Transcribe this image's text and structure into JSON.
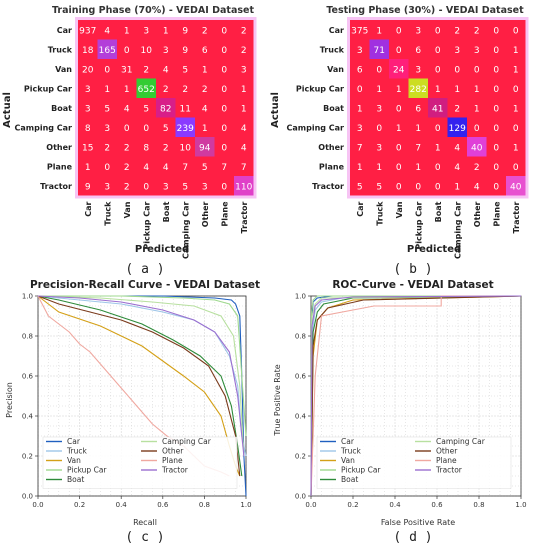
{
  "chart_data": [
    {
      "type": "heatmap",
      "title": "Training Phase (70%) - VEDAI Dataset",
      "xlabel": "Predicted",
      "ylabel": "Actual",
      "panel_label": "( a )",
      "categories": [
        "Car",
        "Truck",
        "Van",
        "Pickup Car",
        "Boat",
        "Camping Car",
        "Other",
        "Plane",
        "Tractor"
      ],
      "matrix": [
        [
          937,
          4,
          1,
          3,
          1,
          9,
          2,
          0,
          2
        ],
        [
          18,
          165,
          0,
          10,
          3,
          9,
          6,
          0,
          2
        ],
        [
          20,
          0,
          31,
          2,
          4,
          5,
          1,
          0,
          3
        ],
        [
          3,
          1,
          1,
          652,
          2,
          2,
          2,
          0,
          1
        ],
        [
          3,
          5,
          4,
          5,
          82,
          11,
          4,
          0,
          1
        ],
        [
          8,
          3,
          0,
          0,
          5,
          239,
          1,
          0,
          4
        ],
        [
          15,
          2,
          2,
          8,
          2,
          10,
          94,
          0,
          4
        ],
        [
          1,
          0,
          2,
          4,
          4,
          7,
          5,
          7,
          7
        ],
        [
          9,
          3,
          2,
          0,
          3,
          5,
          3,
          0,
          110
        ]
      ],
      "highlight_colors": {
        "0_0": "#ff1f44",
        "1_1": "#b33fd9",
        "3_3": "#33cc33",
        "4_4": "#d81e88",
        "5_5": "#8a3aff",
        "6_6": "#d03aa0",
        "8_8": "#e040c8"
      }
    },
    {
      "type": "heatmap",
      "title": "Testing Phase (30%) - VEDAI Dataset",
      "xlabel": "Predicted",
      "ylabel": "Actual",
      "panel_label": "( b )",
      "categories": [
        "Car",
        "Truck",
        "Van",
        "Pickup Car",
        "Boat",
        "Camping Car",
        "Other",
        "Plane",
        "Tractor"
      ],
      "matrix": [
        [
          375,
          1,
          0,
          3,
          0,
          2,
          2,
          0,
          0
        ],
        [
          3,
          71,
          0,
          6,
          0,
          3,
          3,
          0,
          1
        ],
        [
          6,
          0,
          24,
          3,
          0,
          0,
          0,
          0,
          1
        ],
        [
          0,
          1,
          1,
          282,
          1,
          1,
          1,
          0,
          0
        ],
        [
          1,
          3,
          0,
          6,
          41,
          2,
          1,
          0,
          1
        ],
        [
          3,
          0,
          1,
          1,
          0,
          129,
          0,
          0,
          0
        ],
        [
          7,
          3,
          0,
          7,
          1,
          4,
          40,
          0,
          1
        ],
        [
          1,
          1,
          0,
          1,
          0,
          4,
          2,
          0,
          0
        ],
        [
          5,
          5,
          0,
          0,
          0,
          1,
          4,
          0,
          40
        ]
      ],
      "highlight_colors": {
        "0_0": "#ff1f44",
        "1_1": "#a030e0",
        "2_2": "#ff1f7a",
        "3_3": "#ccdd22",
        "4_4": "#d01e80",
        "5_5": "#3322ee",
        "6_6": "#e040d8",
        "8_8": "#e850d0"
      }
    },
    {
      "type": "line",
      "title": "Precision-Recall Curve - VEDAI Dataset",
      "xlabel": "Recall",
      "ylabel": "Precision",
      "panel_label": "( c )",
      "xlim": [
        0,
        1.0
      ],
      "ylim": [
        0,
        1.0
      ],
      "xticks": [
        "0.0",
        "0.2",
        "0.4",
        "0.6",
        "0.8",
        "1.0"
      ],
      "yticks": [
        "0.0",
        "0.2",
        "0.4",
        "0.6",
        "0.8",
        "1.0"
      ],
      "legend": "lower-left",
      "grid": true,
      "series": [
        {
          "name": "Car",
          "color": "#1f5fbf",
          "x": [
            0,
            0.3,
            0.6,
            0.85,
            0.93,
            0.95,
            0.97,
            0.98,
            0.99,
            1.0
          ],
          "y": [
            1.0,
            1.0,
            1.0,
            0.99,
            0.98,
            0.96,
            0.9,
            0.6,
            0.2,
            0.0
          ]
        },
        {
          "name": "Truck",
          "color": "#9ec6e8",
          "x": [
            0,
            0.2,
            0.4,
            0.6,
            0.75,
            0.85,
            0.92,
            0.96,
            0.98,
            1.0
          ],
          "y": [
            1.0,
            0.98,
            0.96,
            0.92,
            0.88,
            0.82,
            0.7,
            0.55,
            0.3,
            0.2
          ]
        },
        {
          "name": "Van",
          "color": "#d4a017",
          "x": [
            0,
            0.1,
            0.3,
            0.5,
            0.7,
            0.8,
            0.88,
            0.92,
            0.95,
            0.97
          ],
          "y": [
            1.0,
            0.92,
            0.85,
            0.75,
            0.6,
            0.52,
            0.4,
            0.25,
            0.15,
            0.1
          ]
        },
        {
          "name": "Pickup Car",
          "color": "#9fd98f",
          "x": [
            0,
            0.4,
            0.7,
            0.85,
            0.92,
            0.96,
            0.98,
            1.0
          ],
          "y": [
            1.0,
            1.0,
            0.99,
            0.98,
            0.96,
            0.9,
            0.6,
            0.3
          ]
        },
        {
          "name": "Boat",
          "color": "#2e8b3a",
          "x": [
            0,
            0.1,
            0.3,
            0.5,
            0.65,
            0.78,
            0.88,
            0.93,
            0.96,
            0.98
          ],
          "y": [
            1.0,
            0.98,
            0.93,
            0.86,
            0.78,
            0.7,
            0.6,
            0.45,
            0.25,
            0.1
          ]
        },
        {
          "name": "Camping Car",
          "color": "#b8e0a0",
          "x": [
            0,
            0.3,
            0.55,
            0.75,
            0.88,
            0.94,
            0.97,
            0.99
          ],
          "y": [
            1.0,
            0.99,
            0.97,
            0.95,
            0.9,
            0.8,
            0.55,
            0.2
          ]
        },
        {
          "name": "Other",
          "color": "#7a3b1c",
          "x": [
            0,
            0.1,
            0.25,
            0.4,
            0.55,
            0.7,
            0.82,
            0.9,
            0.95,
            0.97
          ],
          "y": [
            1.0,
            0.96,
            0.92,
            0.88,
            0.82,
            0.74,
            0.65,
            0.5,
            0.3,
            0.1
          ]
        },
        {
          "name": "Plane",
          "color": "#f0a8a0",
          "x": [
            0,
            0.05,
            0.1,
            0.15,
            0.2,
            0.25,
            0.3,
            0.35,
            0.4,
            0.45,
            0.5,
            0.55,
            0.62,
            0.7,
            0.75,
            0.8,
            0.88,
            0.92
          ],
          "y": [
            1.0,
            0.9,
            0.86,
            0.82,
            0.76,
            0.72,
            0.66,
            0.6,
            0.54,
            0.48,
            0.42,
            0.36,
            0.3,
            0.25,
            0.2,
            0.15,
            0.12,
            0.1
          ]
        },
        {
          "name": "Tractor",
          "color": "#9b6fd0",
          "x": [
            0,
            0.2,
            0.4,
            0.6,
            0.75,
            0.85,
            0.92,
            0.96,
            0.99
          ],
          "y": [
            1.0,
            0.99,
            0.97,
            0.93,
            0.88,
            0.82,
            0.72,
            0.5,
            0.2
          ]
        }
      ]
    },
    {
      "type": "line",
      "title": "ROC-Curve - VEDAI Dataset",
      "xlabel": "False Positive Rate",
      "ylabel": "True Positive Rate",
      "panel_label": "( d )",
      "xlim": [
        0,
        1.0
      ],
      "ylim": [
        0,
        1.0
      ],
      "xticks": [
        "0.0",
        "0.2",
        "0.4",
        "0.6",
        "0.8",
        "1.0"
      ],
      "yticks": [
        "0.0",
        "0.2",
        "0.4",
        "0.6",
        "0.8",
        "1.0"
      ],
      "legend": "lower-right",
      "grid": true,
      "series": [
        {
          "name": "Car",
          "color": "#1f5fbf",
          "x": [
            0,
            0.005,
            0.01,
            0.03,
            0.1,
            1.0
          ],
          "y": [
            0,
            0.9,
            0.97,
            0.99,
            1.0,
            1.0
          ]
        },
        {
          "name": "Truck",
          "color": "#9ec6e8",
          "x": [
            0,
            0.005,
            0.02,
            0.05,
            0.15,
            1.0
          ],
          "y": [
            0,
            0.8,
            0.93,
            0.97,
            0.99,
            1.0
          ]
        },
        {
          "name": "Van",
          "color": "#d4a017",
          "x": [
            0,
            0.01,
            0.03,
            0.08,
            0.2,
            1.0
          ],
          "y": [
            0,
            0.7,
            0.88,
            0.94,
            0.98,
            1.0
          ]
        },
        {
          "name": "Pickup Car",
          "color": "#9fd98f",
          "x": [
            0,
            0.003,
            0.01,
            0.03,
            1.0
          ],
          "y": [
            0,
            0.92,
            0.98,
            1.0,
            1.0
          ]
        },
        {
          "name": "Boat",
          "color": "#2e8b3a",
          "x": [
            0,
            0.01,
            0.03,
            0.06,
            0.2,
            1.0
          ],
          "y": [
            0,
            0.82,
            0.92,
            0.96,
            0.99,
            1.0
          ]
        },
        {
          "name": "Camping Car",
          "color": "#b8e0a0",
          "x": [
            0,
            0.005,
            0.02,
            0.05,
            1.0
          ],
          "y": [
            0,
            0.9,
            0.96,
            0.99,
            1.0
          ]
        },
        {
          "name": "Other",
          "color": "#7a3b1c",
          "x": [
            0,
            0.01,
            0.03,
            0.08,
            0.25,
            1.0
          ],
          "y": [
            0,
            0.75,
            0.88,
            0.94,
            0.98,
            1.0
          ]
        },
        {
          "name": "Plane",
          "color": "#f0a8a0",
          "x": [
            0,
            0.02,
            0.05,
            0.3,
            0.62,
            0.62,
            1.0
          ],
          "y": [
            0,
            0.6,
            0.9,
            0.95,
            0.95,
            1.0,
            1.0
          ]
        },
        {
          "name": "Tractor",
          "color": "#9b6fd0",
          "x": [
            0,
            0.005,
            0.02,
            0.05,
            0.2,
            1.0
          ],
          "y": [
            0,
            0.85,
            0.95,
            0.98,
            0.995,
            1.0
          ]
        }
      ]
    }
  ]
}
